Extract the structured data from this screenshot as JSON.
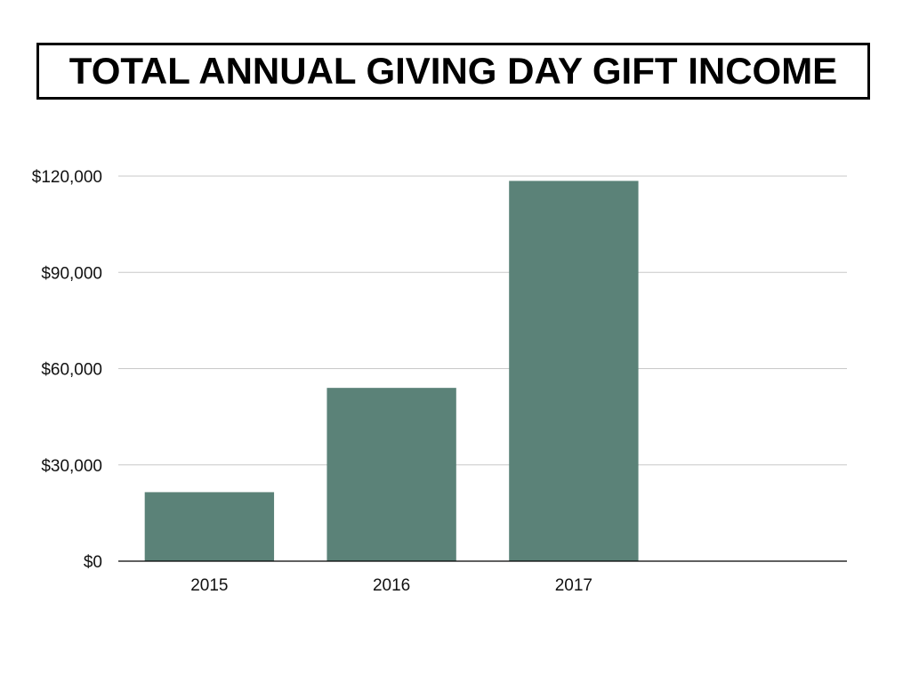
{
  "chart_data": {
    "type": "bar",
    "title": "TOTAL ANNUAL GIVING DAY GIFT INCOME",
    "xlabel": "",
    "ylabel": "",
    "categories": [
      "2015",
      "2016",
      "2017",
      ""
    ],
    "values": [
      21500,
      54000,
      118500,
      null
    ],
    "ylim": [
      0,
      120000
    ],
    "yticks": [
      0,
      30000,
      60000,
      90000,
      120000
    ],
    "ytick_labels": [
      "$0",
      "$30,000",
      "$60,000",
      "$90,000",
      "$120,000"
    ],
    "grid": true,
    "legend": "none",
    "bar_color": "#5b8278",
    "grid_color": "#c8c8c8",
    "axis_color": "#000000"
  }
}
